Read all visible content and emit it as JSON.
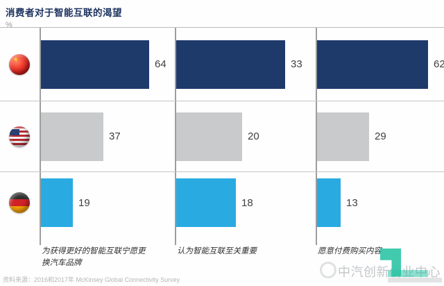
{
  "header": {
    "title": "消费者对于智能互联的渴望",
    "unit": "%"
  },
  "chart_data": {
    "type": "bar",
    "orientation": "horizontal",
    "title": "消费者对于智能互联的渴望",
    "unit": "%",
    "categories": [
      "为获得更好的智能互联宁愿更换汽车品牌",
      "认为智能互联至关重要",
      "愿意付费购买内容"
    ],
    "series": [
      {
        "name": "China",
        "icon": "china-flag-icon",
        "color": "#1e3a6b",
        "values": [
          64,
          33,
          62
        ]
      },
      {
        "name": "USA",
        "icon": "usa-flag-icon",
        "color": "#c9cacb",
        "values": [
          37,
          20,
          29
        ]
      },
      {
        "name": "Germany",
        "icon": "germany-flag-icon",
        "color": "#29abe2",
        "values": [
          19,
          18,
          13
        ]
      }
    ],
    "value_range": [
      0,
      100
    ],
    "value_labels": true,
    "grid": false,
    "legend_position": "left-flags",
    "scaling_note": "bars in each column are scaled relative to that column's maximum value"
  },
  "footer": {
    "source": "资料来源：2016和2017年 McKinsey Global Connectivity Survey"
  },
  "watermark": {
    "text": "中汽创新创业中心",
    "accent_color": "#2ec4a5"
  }
}
